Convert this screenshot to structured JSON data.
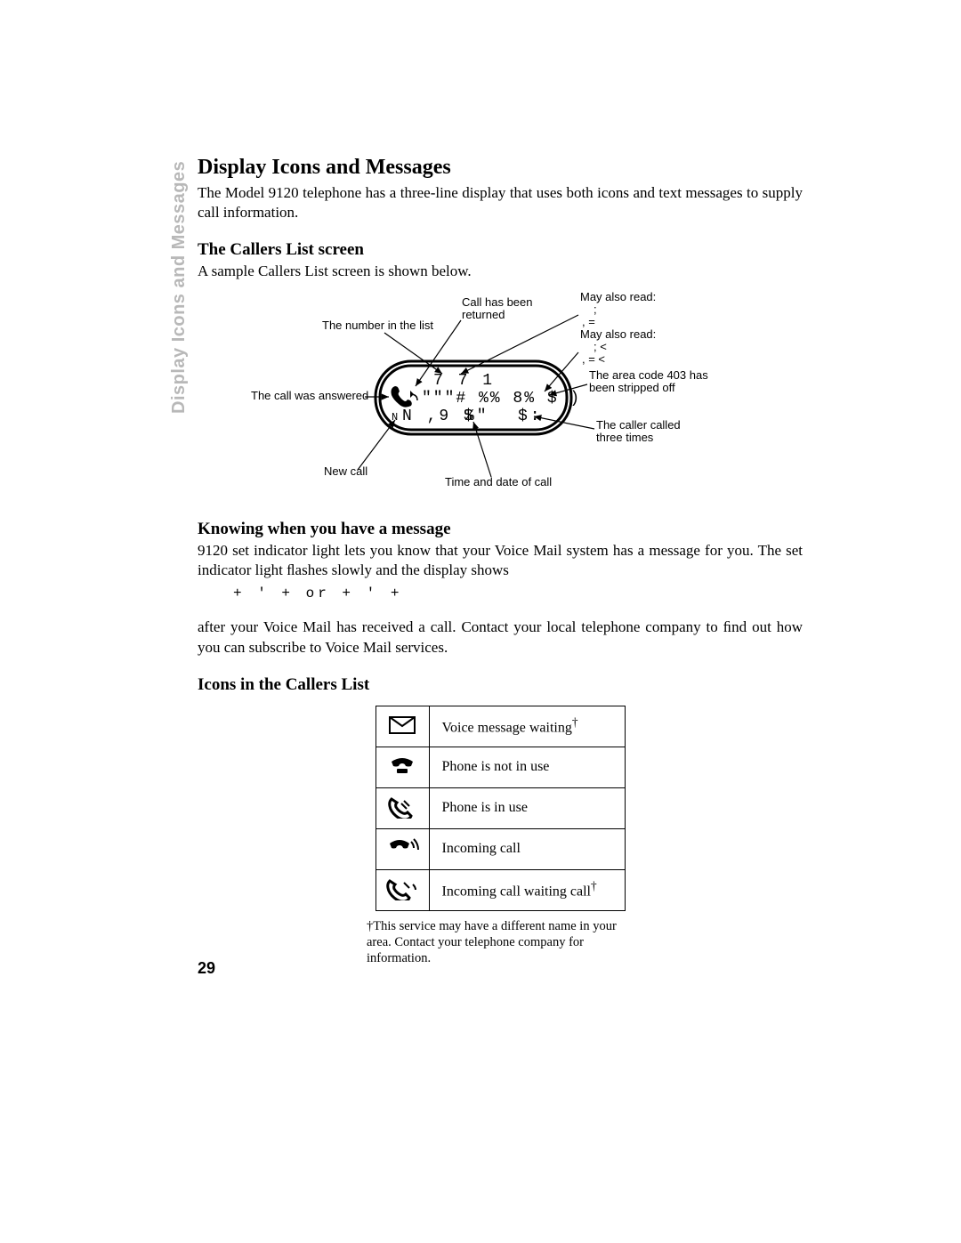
{
  "sideTab": "Display Icons and Messages",
  "title": "Display Icons and Messages",
  "intro": "The Model  9120 telephone has a three-line display that uses both icons and text messages to supply call information.",
  "sub1": "The Callers List screen",
  "sub1Body": "A sample Callers List screen is shown below.",
  "diagram": {
    "ann_mayAlso1a": "May also read:",
    "ann_mayAlso1b": ";",
    "ann_mayAlso1c": ",   =",
    "ann_number": "The number in the list",
    "ann_returned1": "Call has been",
    "ann_returned2": "returned",
    "ann_mayAlso2a": "May also read:",
    "ann_mayAlso2b": ";   <",
    "ann_mayAlso2c": ",   =   <",
    "ann_area1": "The area code 403 has",
    "ann_area2": "been stripped off",
    "ann_answered": "The call was answered",
    "ann_three1": "The caller called",
    "ann_three2": "three times",
    "ann_new": "New call",
    "ann_time": "Time and date of call",
    "disp_line1": "7 7 1",
    "disp_line2": "\"\"\"# %% 8% $ )",
    "disp_line3a": "N ,9 $",
    "disp_line3b": "%\"",
    "disp_line3c": "$:"
  },
  "sub2": "Knowing when you have a message",
  "sub2Body1": "9120 set indicator light lets you know that your Voice Mail system has a message for you. The set indicator light ﬂashes slowly and the display shows",
  "messageDisplay": "+ ' +    or    + ' +",
  "sub2Body2": "after your Voice Mail has received a call. Contact your local telephone company to ﬁnd out how you can subscribe to Voice Mail services.",
  "sub3": "Icons in the Callers List",
  "iconsTable": {
    "rows": [
      {
        "icon": "envelope",
        "label": "Voice message waiting",
        "dagger": true
      },
      {
        "icon": "phone-on",
        "label": "Phone is not in use",
        "dagger": false
      },
      {
        "icon": "phone-off",
        "label": "Phone is in use",
        "dagger": false
      },
      {
        "icon": "incoming",
        "label": "Incoming call",
        "dagger": false
      },
      {
        "icon": "incoming-wait",
        "label": "Incoming call waiting call",
        "dagger": true
      }
    ]
  },
  "footnote": "†This service may have a different name in your area.  Contact your telephone company for information.",
  "pageNumber": "29",
  "colors": {
    "text": "#000000",
    "bg": "#ffffff",
    "sideTab": "#b8b8b8"
  }
}
